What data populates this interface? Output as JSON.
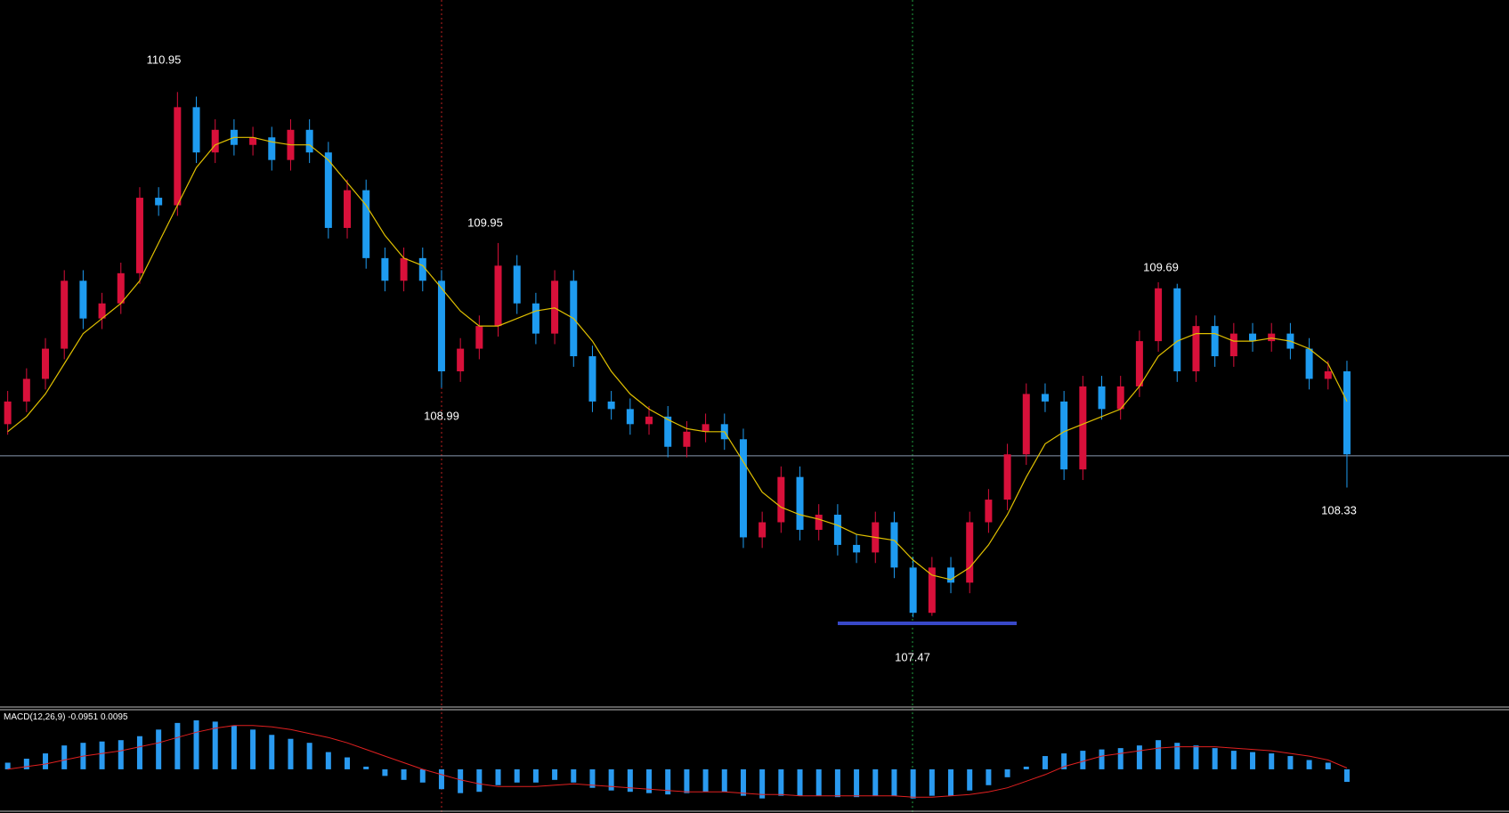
{
  "chart_data": {
    "type": "candlestick",
    "up_color": "#d8103a",
    "down_color": "#1e9bf0",
    "ma_color": "#e0c000",
    "ylim": [
      106.87,
      111.56
    ],
    "hline": 108.54,
    "annotations": [
      "110.95",
      "109.95",
      "108.99",
      "109.69",
      "107.47",
      "108.33"
    ],
    "open": [
      108.75,
      108.9,
      109.05,
      109.25,
      109.7,
      109.45,
      109.55,
      109.75,
      110.25,
      110.2,
      110.85,
      110.55,
      110.7,
      110.6,
      110.65,
      110.5,
      110.7,
      110.55,
      110.05,
      110.3,
      109.85,
      109.7,
      109.85,
      109.7,
      109.1,
      109.25,
      109.4,
      109.8,
      109.55,
      109.35,
      109.7,
      109.2,
      108.9,
      108.85,
      108.75,
      108.8,
      108.6,
      108.7,
      108.75,
      108.65,
      108.0,
      108.1,
      108.4,
      108.05,
      108.15,
      107.95,
      107.9,
      108.1,
      107.8,
      107.5,
      107.8,
      107.7,
      108.1,
      108.25,
      108.55,
      108.95,
      108.9,
      108.45,
      109.0,
      108.85,
      109.0,
      109.3,
      109.65,
      109.1,
      109.4,
      109.2,
      109.35,
      109.3,
      109.35,
      109.25,
      109.05,
      109.1
    ],
    "high": [
      108.97,
      109.12,
      109.32,
      109.77,
      109.77,
      109.62,
      109.82,
      110.32,
      110.32,
      110.95,
      110.92,
      110.77,
      110.77,
      110.72,
      110.72,
      110.77,
      110.77,
      110.62,
      110.37,
      110.37,
      109.92,
      109.92,
      109.92,
      109.77,
      109.32,
      109.47,
      109.95,
      109.87,
      109.62,
      109.77,
      109.77,
      109.27,
      108.97,
      108.92,
      108.87,
      108.87,
      108.77,
      108.82,
      108.82,
      108.72,
      108.17,
      108.47,
      108.47,
      108.22,
      108.22,
      108.02,
      108.17,
      108.17,
      107.87,
      107.87,
      107.87,
      108.17,
      108.32,
      108.62,
      109.02,
      109.02,
      108.97,
      109.07,
      109.07,
      109.07,
      109.37,
      109.69,
      109.68,
      109.47,
      109.47,
      109.42,
      109.42,
      109.42,
      109.42,
      109.32,
      109.17,
      109.17
    ],
    "low": [
      108.68,
      108.83,
      108.98,
      109.18,
      109.38,
      109.38,
      109.48,
      109.68,
      110.13,
      110.13,
      110.48,
      110.48,
      110.53,
      110.53,
      110.43,
      110.43,
      110.48,
      109.98,
      109.98,
      109.78,
      109.63,
      109.63,
      109.63,
      108.99,
      109.03,
      109.18,
      109.33,
      109.48,
      109.28,
      109.28,
      109.13,
      108.83,
      108.78,
      108.68,
      108.68,
      108.53,
      108.53,
      108.63,
      108.58,
      107.93,
      107.93,
      108.03,
      107.98,
      107.98,
      107.88,
      107.83,
      107.83,
      107.73,
      107.47,
      107.48,
      107.63,
      107.63,
      108.03,
      108.18,
      108.48,
      108.83,
      108.38,
      108.38,
      108.78,
      108.78,
      108.93,
      109.23,
      109.03,
      109.03,
      109.13,
      109.13,
      109.23,
      109.23,
      109.18,
      108.98,
      108.98,
      108.33
    ],
    "close": [
      108.9,
      109.05,
      109.25,
      109.7,
      109.45,
      109.55,
      109.75,
      110.25,
      110.2,
      110.85,
      110.55,
      110.7,
      110.6,
      110.65,
      110.5,
      110.7,
      110.55,
      110.05,
      110.3,
      109.85,
      109.7,
      109.85,
      109.7,
      109.1,
      109.25,
      109.4,
      109.8,
      109.55,
      109.35,
      109.7,
      109.2,
      108.9,
      108.85,
      108.75,
      108.8,
      108.6,
      108.7,
      108.75,
      108.65,
      108.0,
      108.1,
      108.4,
      108.05,
      108.15,
      107.95,
      107.9,
      108.1,
      107.8,
      107.5,
      107.8,
      107.7,
      108.1,
      108.25,
      108.55,
      108.95,
      108.9,
      108.45,
      109.0,
      108.85,
      109.0,
      109.3,
      109.65,
      109.1,
      109.4,
      109.2,
      109.35,
      109.3,
      109.35,
      109.25,
      109.05,
      109.1,
      108.55
    ],
    "ma": [
      108.7,
      108.8,
      108.95,
      109.15,
      109.35,
      109.45,
      109.55,
      109.7,
      109.95,
      110.2,
      110.45,
      110.6,
      110.65,
      110.65,
      110.62,
      110.6,
      110.6,
      110.5,
      110.35,
      110.2,
      110.0,
      109.85,
      109.8,
      109.65,
      109.5,
      109.4,
      109.4,
      109.45,
      109.5,
      109.52,
      109.45,
      109.3,
      109.1,
      108.95,
      108.85,
      108.78,
      108.72,
      108.7,
      108.7,
      108.5,
      108.3,
      108.2,
      108.15,
      108.12,
      108.08,
      108.02,
      108.0,
      107.98,
      107.85,
      107.75,
      107.72,
      107.8,
      107.95,
      108.15,
      108.4,
      108.62,
      108.7,
      108.75,
      108.8,
      108.85,
      109.0,
      109.2,
      109.3,
      109.35,
      109.35,
      109.3,
      109.3,
      109.32,
      109.3,
      109.25,
      109.15,
      108.9
    ],
    "macd": {
      "label": "MACD(12,26,9)",
      "hist_color": "#2a9af0",
      "signal_color": "#e02020",
      "ylim": [
        -0.33,
        0.45
      ],
      "values": [
        0.05,
        0.08,
        0.12,
        0.18,
        0.2,
        0.21,
        0.22,
        0.25,
        0.3,
        0.35,
        0.37,
        0.36,
        0.33,
        0.3,
        0.26,
        0.23,
        0.2,
        0.13,
        0.09,
        0.02,
        -0.05,
        -0.08,
        -0.1,
        -0.15,
        -0.18,
        -0.17,
        -0.12,
        -0.1,
        -0.1,
        -0.08,
        -0.1,
        -0.14,
        -0.16,
        -0.17,
        -0.18,
        -0.19,
        -0.18,
        -0.17,
        -0.17,
        -0.2,
        -0.22,
        -0.2,
        -0.2,
        -0.2,
        -0.21,
        -0.21,
        -0.2,
        -0.2,
        -0.22,
        -0.2,
        -0.2,
        -0.16,
        -0.12,
        -0.06,
        0.02,
        0.1,
        0.12,
        0.14,
        0.15,
        0.16,
        0.18,
        0.22,
        0.2,
        0.18,
        0.16,
        0.14,
        0.13,
        0.12,
        0.1,
        0.07,
        0.05,
        -0.0951
      ],
      "signal": [
        0.0,
        0.02,
        0.04,
        0.07,
        0.1,
        0.12,
        0.14,
        0.17,
        0.2,
        0.24,
        0.28,
        0.31,
        0.33,
        0.33,
        0.32,
        0.3,
        0.27,
        0.24,
        0.2,
        0.15,
        0.1,
        0.05,
        0.0,
        -0.04,
        -0.08,
        -0.11,
        -0.13,
        -0.13,
        -0.13,
        -0.12,
        -0.11,
        -0.12,
        -0.13,
        -0.14,
        -0.15,
        -0.16,
        -0.17,
        -0.17,
        -0.17,
        -0.18,
        -0.19,
        -0.19,
        -0.2,
        -0.2,
        -0.2,
        -0.2,
        -0.2,
        -0.2,
        -0.21,
        -0.21,
        -0.2,
        -0.19,
        -0.17,
        -0.14,
        -0.09,
        -0.04,
        0.02,
        0.06,
        0.1,
        0.12,
        0.14,
        0.16,
        0.17,
        0.17,
        0.17,
        0.16,
        0.15,
        0.14,
        0.12,
        0.1,
        0.07,
        0.0095
      ]
    }
  }
}
